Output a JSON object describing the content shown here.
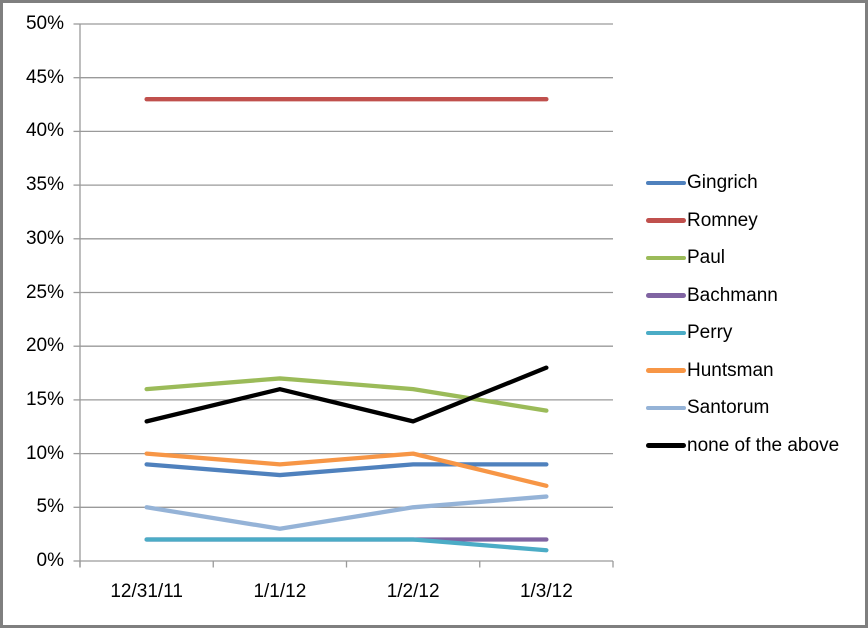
{
  "chart_data": {
    "type": "line",
    "title": "",
    "xlabel": "",
    "ylabel": "",
    "grid": true,
    "legend_position": "right",
    "x_categories": [
      "12/31/11",
      "1/1/12",
      "1/2/12",
      "1/3/12"
    ],
    "y_axis": {
      "min": 0,
      "max": 50,
      "step": 5,
      "tick_labels": [
        "0%",
        "5%",
        "10%",
        "15%",
        "20%",
        "25%",
        "30%",
        "35%",
        "40%",
        "45%",
        "50%"
      ]
    },
    "series": [
      {
        "name": "Gingrich",
        "color": "#4F81BD",
        "values": [
          9,
          8,
          9,
          9
        ]
      },
      {
        "name": "Romney",
        "color": "#C0504D",
        "values": [
          43,
          43,
          43,
          43
        ]
      },
      {
        "name": "Paul",
        "color": "#9BBB59",
        "values": [
          16,
          17,
          16,
          14
        ]
      },
      {
        "name": "Bachmann",
        "color": "#8064A2",
        "values": [
          2,
          2,
          2,
          2
        ]
      },
      {
        "name": "Perry",
        "color": "#4BACC6",
        "values": [
          2,
          2,
          2,
          1
        ]
      },
      {
        "name": "Huntsman",
        "color": "#F79646",
        "values": [
          10,
          9,
          10,
          7
        ]
      },
      {
        "name": "Santorum",
        "color": "#95B3D7",
        "values": [
          5,
          3,
          5,
          6
        ]
      },
      {
        "name": "none of the above",
        "color": "#000000",
        "values": [
          13,
          16,
          13,
          18
        ]
      }
    ]
  },
  "colors": {
    "background": "#FFFFFF",
    "gridline": "#9A9A9A",
    "axis": "#9A9A9A",
    "outer_border": "#7F7F7F",
    "text": "#000000"
  }
}
